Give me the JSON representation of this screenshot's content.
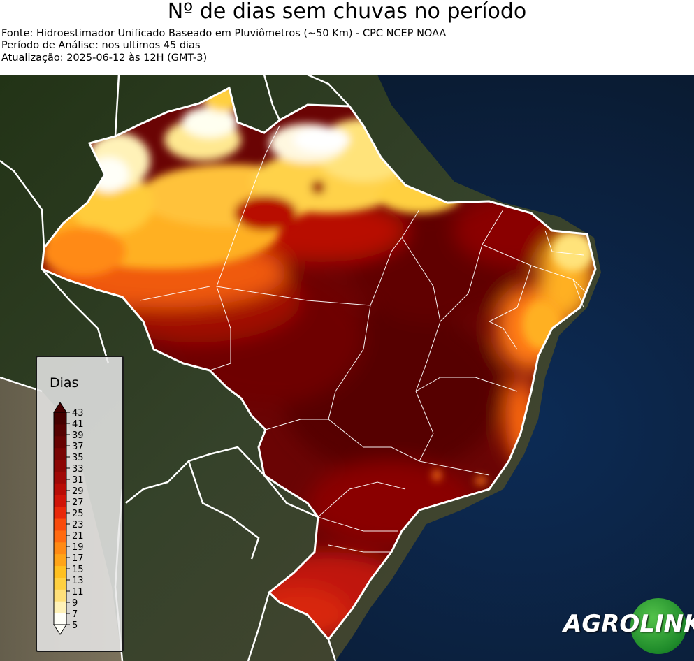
{
  "title": "Nº de dias sem chuvas no período",
  "source_line": "Fonte: Hidroestimador Unificado Baseado em Pluviômetros (~50 Km) - CPC NCEP NOAA",
  "period_line": "Período de Análise: nos ultimos 45 dias",
  "update_line": "Atualização: 2025-06-12 às 12H (GMT-3)",
  "legend": {
    "title": "Dias",
    "ticks": [
      "43",
      "41",
      "39",
      "37",
      "35",
      "33",
      "31",
      "29",
      "27",
      "25",
      "23",
      "21",
      "19",
      "17",
      "15",
      "13",
      "11",
      "9",
      "7",
      "5"
    ],
    "colors": [
      "#fffff8",
      "#fff2b8",
      "#ffe07a",
      "#ffd040",
      "#ffc020",
      "#ffa418",
      "#ff8a14",
      "#ff6a10",
      "#f84a0c",
      "#e8280a",
      "#d01408",
      "#b80c06",
      "#a00806",
      "#8c0604",
      "#780404",
      "#660202",
      "#550101",
      "#450000"
    ]
  },
  "colors": {
    "ocean": "#0e2748",
    "land": "#2b3a1f",
    "borders": "#ffffff"
  },
  "logo": {
    "text_left": "AGRO",
    "text_right": "LINK"
  }
}
